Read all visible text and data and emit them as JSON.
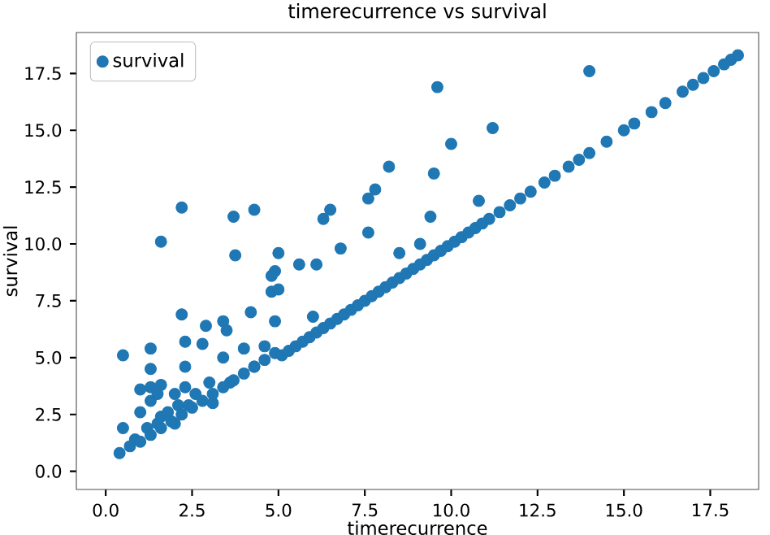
{
  "chart_data": {
    "type": "scatter",
    "title": "timerecurrence vs survival",
    "xlabel": "timerecurrence",
    "ylabel": "survival",
    "xlim": [
      -0.85,
      18.9
    ],
    "ylim": [
      -0.8,
      19.3
    ],
    "xticks": [
      {
        "value": 0,
        "label": "0.0"
      },
      {
        "value": 2.5,
        "label": "2.5"
      },
      {
        "value": 5,
        "label": "5.0"
      },
      {
        "value": 7.5,
        "label": "7.5"
      },
      {
        "value": 10,
        "label": "10.0"
      },
      {
        "value": 12.5,
        "label": "12.5"
      },
      {
        "value": 15,
        "label": "15.0"
      },
      {
        "value": 17.5,
        "label": "17.5"
      }
    ],
    "yticks": [
      {
        "value": 0,
        "label": "0.0"
      },
      {
        "value": 2.5,
        "label": "2.5"
      },
      {
        "value": 5,
        "label": "5.0"
      },
      {
        "value": 7.5,
        "label": "7.5"
      },
      {
        "value": 10,
        "label": "10.0"
      },
      {
        "value": 12.5,
        "label": "12.5"
      },
      {
        "value": 15,
        "label": "15.0"
      },
      {
        "value": 17.5,
        "label": "17.5"
      }
    ],
    "legend": "top left",
    "marker": "circle",
    "grid": false,
    "series": [
      {
        "name": "survival",
        "color": "#1f77b4",
        "x": [
          1.6,
          2.2,
          3.7,
          4.3,
          3.75,
          5.0,
          6.3,
          6.5,
          6.8,
          7.6,
          7.8,
          8.2,
          7.6,
          9.6,
          14.0,
          11.2,
          10.0,
          9.5,
          10.8,
          9.4,
          9.1,
          8.5,
          0.5,
          0.5,
          1.3,
          1.3,
          2.2,
          2.3,
          2.3,
          2.9,
          2.8,
          3.4,
          3.5,
          3.4,
          3.0,
          3.6,
          3.1,
          4.0,
          4.2,
          4.3,
          4.6,
          4.9,
          4.8,
          4.9,
          4.8,
          5.0,
          5.6,
          6.1,
          6.0,
          1.0,
          1.3,
          1.6,
          2.0,
          2.1,
          2.4,
          2.3,
          1.3,
          1.0,
          1.2,
          1.5,
          1.6,
          0.85,
          1.8,
          2.0,
          2.6,
          1.5,
          0.4,
          0.7,
          1.0,
          1.3,
          1.6,
          1.9,
          2.2,
          2.5,
          2.8,
          3.1,
          3.4,
          3.7,
          4.0,
          4.3,
          4.6,
          4.9,
          5.1,
          5.3,
          5.5,
          5.7,
          5.9,
          6.1,
          6.3,
          6.5,
          6.7,
          6.9,
          7.1,
          7.3,
          7.5,
          7.7,
          7.9,
          8.1,
          8.3,
          8.5,
          8.7,
          8.9,
          9.1,
          9.3,
          9.5,
          9.7,
          9.9,
          10.1,
          10.3,
          10.5,
          10.7,
          10.9,
          11.1,
          11.4,
          11.7,
          12.0,
          12.3,
          12.7,
          13.0,
          13.4,
          13.7,
          14.0,
          14.5,
          15.0,
          15.3,
          15.8,
          16.2,
          16.7,
          17.0,
          17.3,
          17.6,
          17.9,
          18.1,
          18.3
        ],
        "values": [
          10.1,
          11.6,
          11.2,
          11.5,
          9.5,
          9.6,
          11.1,
          11.5,
          9.8,
          12.0,
          12.4,
          13.4,
          10.5,
          16.9,
          17.6,
          15.1,
          14.4,
          13.1,
          11.9,
          11.2,
          10.0,
          9.6,
          5.1,
          1.9,
          5.4,
          4.5,
          6.9,
          5.7,
          4.6,
          6.4,
          5.6,
          6.6,
          6.2,
          5.0,
          3.9,
          3.9,
          3.0,
          5.4,
          7.0,
          4.6,
          5.5,
          6.6,
          7.9,
          8.8,
          8.6,
          8.0,
          9.1,
          9.1,
          6.8,
          3.6,
          3.7,
          3.8,
          3.4,
          2.9,
          2.9,
          3.7,
          3.1,
          2.6,
          1.9,
          2.1,
          2.4,
          1.4,
          2.6,
          2.1,
          3.4,
          3.4,
          0.8,
          1.1,
          1.3,
          1.6,
          1.9,
          2.2,
          2.5,
          2.8,
          3.1,
          3.4,
          3.7,
          4.0,
          4.3,
          4.6,
          4.9,
          5.2,
          5.1,
          5.3,
          5.5,
          5.7,
          5.9,
          6.1,
          6.3,
          6.5,
          6.7,
          6.9,
          7.1,
          7.3,
          7.5,
          7.7,
          7.9,
          8.1,
          8.3,
          8.5,
          8.7,
          8.9,
          9.1,
          9.3,
          9.5,
          9.7,
          9.9,
          10.1,
          10.3,
          10.5,
          10.7,
          10.9,
          11.1,
          11.4,
          11.7,
          12.0,
          12.3,
          12.7,
          13.0,
          13.4,
          13.7,
          14.0,
          14.5,
          15.0,
          15.3,
          15.8,
          16.2,
          16.7,
          17.0,
          17.3,
          17.6,
          17.9,
          18.1,
          18.3
        ]
      }
    ]
  }
}
